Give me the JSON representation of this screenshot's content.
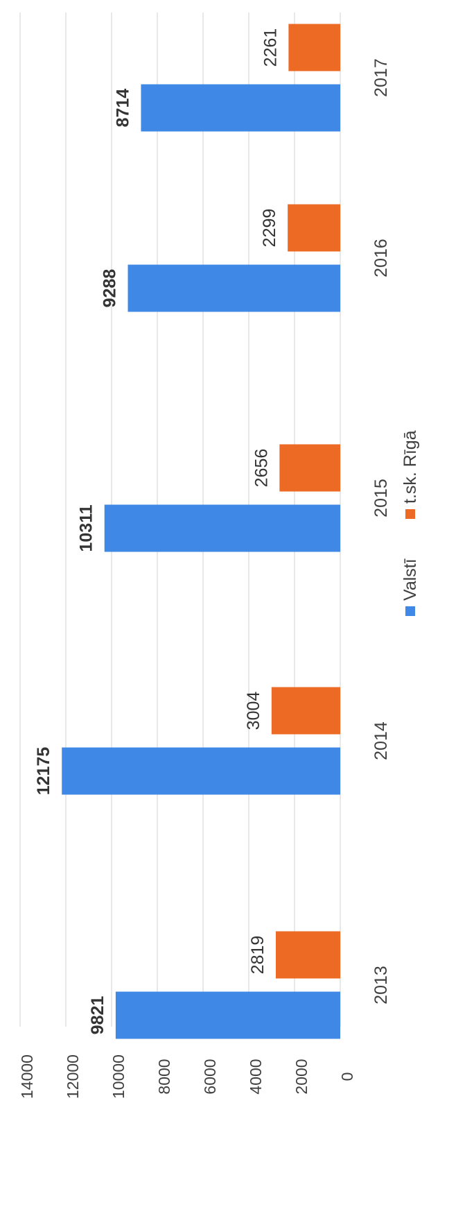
{
  "chart_data": {
    "type": "bar",
    "orientation": "rotated-90-ccw",
    "categories": [
      "2013",
      "2014",
      "2015",
      "2016",
      "2017"
    ],
    "series": [
      {
        "name": "Valstī",
        "color": "#3f88e6",
        "values": [
          9821,
          12175,
          10311,
          9288,
          8714
        ],
        "label_style": "bold"
      },
      {
        "name": "t.sk. Rīgā",
        "color": "#ed6a24",
        "values": [
          2819,
          3004,
          2656,
          2299,
          2261
        ],
        "label_style": "normal"
      }
    ],
    "value_axis": {
      "min": 0,
      "max": 14000,
      "ticks": [
        "0",
        "2000",
        "4000",
        "6000",
        "8000",
        "10000",
        "12000",
        "14000"
      ]
    },
    "grid": true,
    "legend": "bottom",
    "data_labels": true
  }
}
